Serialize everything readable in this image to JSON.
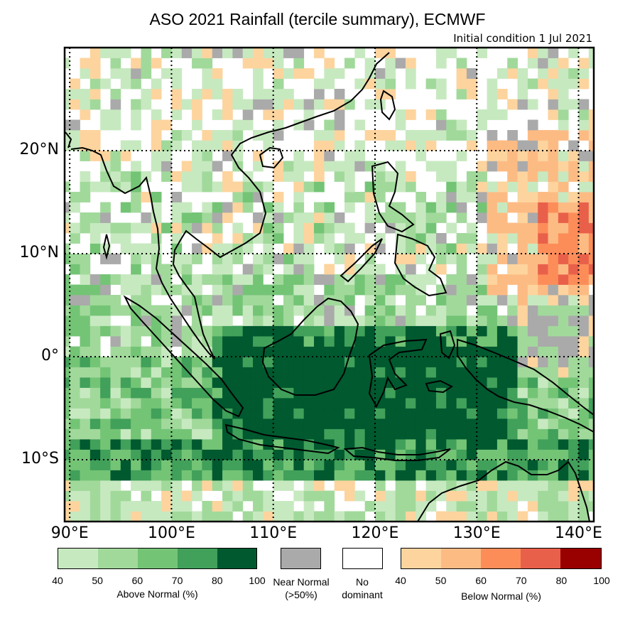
{
  "title": "ASO 2021 Rainfall (tercile summary), ECMWF",
  "subtitle": "Initial condition 1 Jul 2021",
  "map": {
    "lon_range": [
      89.5,
      141.5
    ],
    "lat_range": [
      -16,
      30
    ],
    "lat_labels": [
      {
        "lat": 20,
        "text": "20°N"
      },
      {
        "lat": 10,
        "text": "10°N"
      },
      {
        "lat": 0,
        "text": "0°"
      },
      {
        "lat": -10,
        "text": "10°S"
      }
    ],
    "lon_labels": [
      {
        "lon": 90,
        "text": "90°E"
      },
      {
        "lon": 100,
        "text": "100°E"
      },
      {
        "lon": 110,
        "text": "110°E"
      },
      {
        "lon": 120,
        "text": "120°E"
      },
      {
        "lon": 130,
        "text": "130°E"
      },
      {
        "lon": 140,
        "text": "140°E"
      }
    ]
  },
  "colors": {
    "above": [
      "#c7e9c0",
      "#a1d99b",
      "#74c476",
      "#41a05a",
      "#00592f"
    ],
    "below": [
      "#fdd49e",
      "#fdbb84",
      "#fc8d59",
      "#e9604a",
      "#990000"
    ],
    "near_normal": "#aaaaaa",
    "no_dominant": "#ffffff",
    "coast": "#000000"
  },
  "legend": {
    "above_ticks": [
      "40",
      "50",
      "60",
      "70",
      "80",
      "100"
    ],
    "above_label": "Above Normal (%)",
    "near_normal_label_1": "Near Normal",
    "near_normal_label_2": "(>50%)",
    "no_dominant_label_1": "No",
    "no_dominant_label_2": "dominant",
    "below_ticks": [
      "40",
      "50",
      "60",
      "70",
      "80",
      "100"
    ],
    "below_label": "Below Normal (%)"
  }
}
